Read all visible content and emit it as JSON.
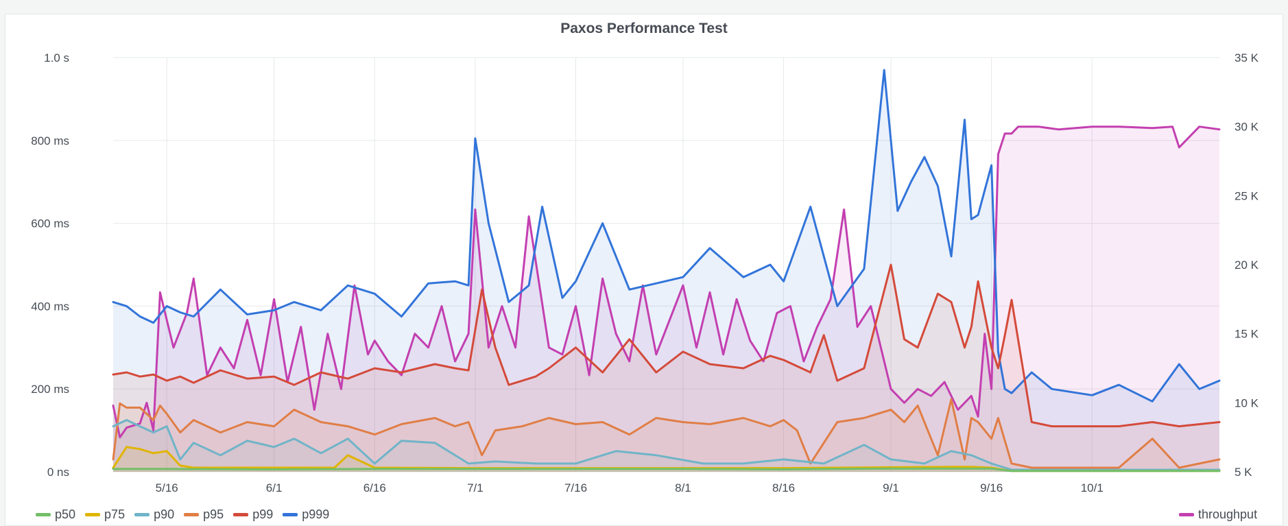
{
  "panel": {
    "title": "Paxos Performance Test"
  },
  "chart_data": {
    "type": "line",
    "title": "Paxos Performance Test",
    "x_range": [
      "2019-05-08",
      "2019-10-20"
    ],
    "x_ticks": [
      "5/16",
      "6/1",
      "6/16",
      "7/1",
      "7/16",
      "8/1",
      "8/16",
      "9/1",
      "9/16",
      "10/1"
    ],
    "y_left": {
      "ticks": [
        "0 ns",
        "200 ms",
        "400 ms",
        "600 ms",
        "800 ms",
        "1.0 s"
      ],
      "range_ms": [
        0,
        1000
      ]
    },
    "y_right": {
      "ticks": [
        "5 K",
        "10 K",
        "15 K",
        "20 K",
        "25 K",
        "30 K",
        "35 K"
      ],
      "range": [
        5000,
        35000
      ]
    },
    "legend_placement": "bottom",
    "grid": true,
    "series": [
      {
        "name": "p50",
        "axis": "left",
        "unit": "ms",
        "color": "#73bf69",
        "x": [
          "5/08",
          "5/16",
          "6/1",
          "6/16",
          "7/1",
          "7/16",
          "8/1",
          "8/16",
          "9/1",
          "9/16",
          "9/19",
          "10/1",
          "10/20"
        ],
        "values": [
          7,
          7,
          6,
          7,
          7,
          7,
          7,
          6,
          8,
          8,
          2,
          2,
          2
        ]
      },
      {
        "name": "p75",
        "axis": "left",
        "unit": "ms",
        "color": "#e0b400",
        "x": [
          "5/08",
          "5/10",
          "5/12",
          "5/14",
          "5/16",
          "5/18",
          "5/20",
          "6/1",
          "6/10",
          "6/12",
          "6/16",
          "7/1",
          "7/16",
          "8/1",
          "8/16",
          "9/1",
          "9/10",
          "9/13",
          "9/16",
          "9/19",
          "10/1",
          "10/20"
        ],
        "values": [
          10,
          60,
          55,
          45,
          50,
          15,
          10,
          10,
          10,
          40,
          10,
          9,
          9,
          9,
          9,
          11,
          12,
          12,
          10,
          2,
          2,
          2
        ]
      },
      {
        "name": "p90",
        "axis": "left",
        "unit": "ms",
        "color": "#6fb4c8",
        "x": [
          "5/08",
          "5/10",
          "5/12",
          "5/14",
          "5/16",
          "5/18",
          "5/20",
          "5/24",
          "5/28",
          "6/1",
          "6/4",
          "6/8",
          "6/12",
          "6/16",
          "6/20",
          "6/25",
          "6/30",
          "7/4",
          "7/10",
          "7/16",
          "7/22",
          "7/28",
          "8/4",
          "8/10",
          "8/16",
          "8/22",
          "8/28",
          "9/1",
          "9/6",
          "9/10",
          "9/13",
          "9/16",
          "9/19",
          "9/25",
          "10/1",
          "10/10",
          "10/20"
        ],
        "values": [
          110,
          125,
          110,
          95,
          110,
          30,
          70,
          40,
          75,
          60,
          80,
          45,
          80,
          20,
          75,
          70,
          20,
          25,
          20,
          20,
          50,
          40,
          20,
          20,
          30,
          20,
          65,
          30,
          20,
          50,
          40,
          20,
          5,
          5,
          5,
          5,
          5
        ]
      },
      {
        "name": "p95",
        "axis": "left",
        "unit": "ms",
        "color": "#e07e46",
        "x": [
          "5/08",
          "5/09",
          "5/10",
          "5/12",
          "5/14",
          "5/15",
          "5/16",
          "5/18",
          "5/20",
          "5/24",
          "5/28",
          "6/1",
          "6/4",
          "6/8",
          "6/12",
          "6/16",
          "6/20",
          "6/25",
          "6/28",
          "6/30",
          "7/2",
          "7/4",
          "7/8",
          "7/12",
          "7/16",
          "7/20",
          "7/24",
          "7/28",
          "8/1",
          "8/5",
          "8/10",
          "8/14",
          "8/16",
          "8/18",
          "8/20",
          "8/24",
          "8/28",
          "9/1",
          "9/3",
          "9/5",
          "9/8",
          "9/10",
          "9/12",
          "9/13",
          "9/14",
          "9/16",
          "9/17",
          "9/19",
          "9/22",
          "9/25",
          "10/1",
          "10/5",
          "10/10",
          "10/14",
          "10/20"
        ],
        "values": [
          30,
          165,
          155,
          155,
          125,
          160,
          140,
          95,
          125,
          95,
          120,
          110,
          150,
          120,
          110,
          90,
          115,
          130,
          110,
          120,
          40,
          100,
          110,
          130,
          115,
          120,
          90,
          130,
          120,
          115,
          130,
          110,
          125,
          100,
          20,
          120,
          130,
          150,
          120,
          160,
          40,
          175,
          30,
          130,
          120,
          80,
          130,
          20,
          10,
          10,
          10,
          10,
          80,
          10,
          30
        ]
      },
      {
        "name": "p99",
        "axis": "left",
        "unit": "ms",
        "color": "#d44a3a",
        "x": [
          "5/08",
          "5/10",
          "5/12",
          "5/14",
          "5/16",
          "5/18",
          "5/20",
          "5/24",
          "5/28",
          "6/1",
          "6/4",
          "6/8",
          "6/12",
          "6/16",
          "6/20",
          "6/25",
          "6/28",
          "6/30",
          "7/2",
          "7/4",
          "7/6",
          "7/10",
          "7/12",
          "7/16",
          "7/20",
          "7/24",
          "7/28",
          "8/1",
          "8/5",
          "8/10",
          "8/14",
          "8/16",
          "8/20",
          "8/22",
          "8/24",
          "8/28",
          "9/1",
          "9/3",
          "9/5",
          "9/8",
          "9/10",
          "9/12",
          "9/13",
          "9/14",
          "9/16",
          "9/17",
          "9/18",
          "9/19",
          "9/22",
          "9/25",
          "10/1",
          "10/5",
          "10/10",
          "10/14",
          "10/20"
        ],
        "values": [
          235,
          240,
          230,
          235,
          220,
          230,
          215,
          245,
          225,
          230,
          210,
          240,
          225,
          250,
          240,
          260,
          250,
          245,
          440,
          300,
          210,
          230,
          250,
          300,
          240,
          320,
          240,
          290,
          260,
          250,
          280,
          270,
          240,
          330,
          220,
          250,
          500,
          320,
          300,
          430,
          410,
          300,
          350,
          460,
          300,
          250,
          330,
          415,
          120,
          110,
          110,
          110,
          120,
          110,
          120
        ]
      },
      {
        "name": "p999",
        "axis": "left",
        "unit": "ms",
        "color": "#3274d9",
        "x": [
          "5/08",
          "5/10",
          "5/12",
          "5/14",
          "5/16",
          "5/18",
          "5/20",
          "5/24",
          "5/28",
          "6/1",
          "6/4",
          "6/8",
          "6/12",
          "6/16",
          "6/20",
          "6/24",
          "6/28",
          "6/30",
          "7/1",
          "7/3",
          "7/6",
          "7/9",
          "7/11",
          "7/14",
          "7/16",
          "7/20",
          "7/24",
          "7/28",
          "8/1",
          "8/5",
          "8/10",
          "8/14",
          "8/16",
          "8/20",
          "8/24",
          "8/28",
          "8/31",
          "9/2",
          "9/4",
          "9/6",
          "9/8",
          "9/10",
          "9/12",
          "9/13",
          "9/14",
          "9/16",
          "9/17",
          "9/18",
          "9/19",
          "9/22",
          "9/25",
          "10/1",
          "10/5",
          "10/10",
          "10/14",
          "10/17",
          "10/20"
        ],
        "values": [
          410,
          400,
          375,
          360,
          400,
          385,
          375,
          440,
          380,
          390,
          410,
          390,
          450,
          430,
          375,
          455,
          460,
          450,
          805,
          600,
          410,
          450,
          640,
          420,
          460,
          600,
          440,
          455,
          470,
          540,
          470,
          500,
          460,
          640,
          400,
          490,
          970,
          630,
          700,
          760,
          690,
          520,
          850,
          610,
          620,
          740,
          290,
          200,
          190,
          240,
          200,
          185,
          210,
          170,
          260,
          200,
          220
        ]
      },
      {
        "name": "throughput",
        "axis": "right",
        "unit": "ops",
        "color": "#c33fb0",
        "x": [
          "5/08",
          "5/09",
          "5/10",
          "5/12",
          "5/13",
          "5/14",
          "5/15",
          "5/17",
          "5/19",
          "5/20",
          "5/22",
          "5/24",
          "5/26",
          "5/28",
          "5/30",
          "6/1",
          "6/3",
          "6/5",
          "6/7",
          "6/9",
          "6/11",
          "6/13",
          "6/15",
          "6/16",
          "6/18",
          "6/20",
          "6/22",
          "6/24",
          "6/26",
          "6/28",
          "6/30",
          "7/1",
          "7/3",
          "7/5",
          "7/7",
          "7/9",
          "7/12",
          "7/14",
          "7/16",
          "7/18",
          "7/20",
          "7/22",
          "7/24",
          "7/26",
          "7/28",
          "8/1",
          "8/3",
          "8/5",
          "8/7",
          "8/9",
          "8/11",
          "8/13",
          "8/15",
          "8/17",
          "8/19",
          "8/21",
          "8/23",
          "8/25",
          "8/27",
          "8/29",
          "9/1",
          "9/3",
          "9/5",
          "9/7",
          "9/9",
          "9/11",
          "9/13",
          "9/14",
          "9/15",
          "9/16",
          "9/17",
          "9/18",
          "9/19",
          "9/20",
          "9/23",
          "9/26",
          "10/1",
          "10/5",
          "10/10",
          "10/13",
          "10/14",
          "10/17",
          "10/20"
        ],
        "values": [
          9800,
          7500,
          8200,
          8500,
          10000,
          8000,
          18000,
          14000,
          16500,
          19000,
          12000,
          14000,
          12500,
          16000,
          12000,
          17500,
          11500,
          15500,
          9500,
          15000,
          11000,
          18500,
          13500,
          14500,
          13000,
          12000,
          15000,
          14000,
          17000,
          13000,
          15000,
          24000,
          14000,
          17000,
          14000,
          23500,
          14000,
          13500,
          17000,
          12000,
          19000,
          15000,
          13000,
          18500,
          13500,
          18500,
          14000,
          18000,
          13500,
          17500,
          14500,
          13000,
          16500,
          17000,
          13000,
          15500,
          17500,
          24000,
          15500,
          17000,
          11000,
          10000,
          11000,
          10500,
          11500,
          9500,
          10500,
          9000,
          15000,
          11000,
          28000,
          29500,
          29500,
          30000,
          30000,
          29800,
          30000,
          30000,
          29900,
          30000,
          28500,
          30000,
          29800
        ]
      }
    ]
  },
  "legend": {
    "left": [
      {
        "label": "p50",
        "color": "#73bf69"
      },
      {
        "label": "p75",
        "color": "#e0b400"
      },
      {
        "label": "p90",
        "color": "#6fb4c8"
      },
      {
        "label": "p95",
        "color": "#e07e46"
      },
      {
        "label": "p99",
        "color": "#d44a3a"
      },
      {
        "label": "p999",
        "color": "#3274d9"
      }
    ],
    "right": [
      {
        "label": "throughput",
        "color": "#c33fb0"
      }
    ]
  }
}
